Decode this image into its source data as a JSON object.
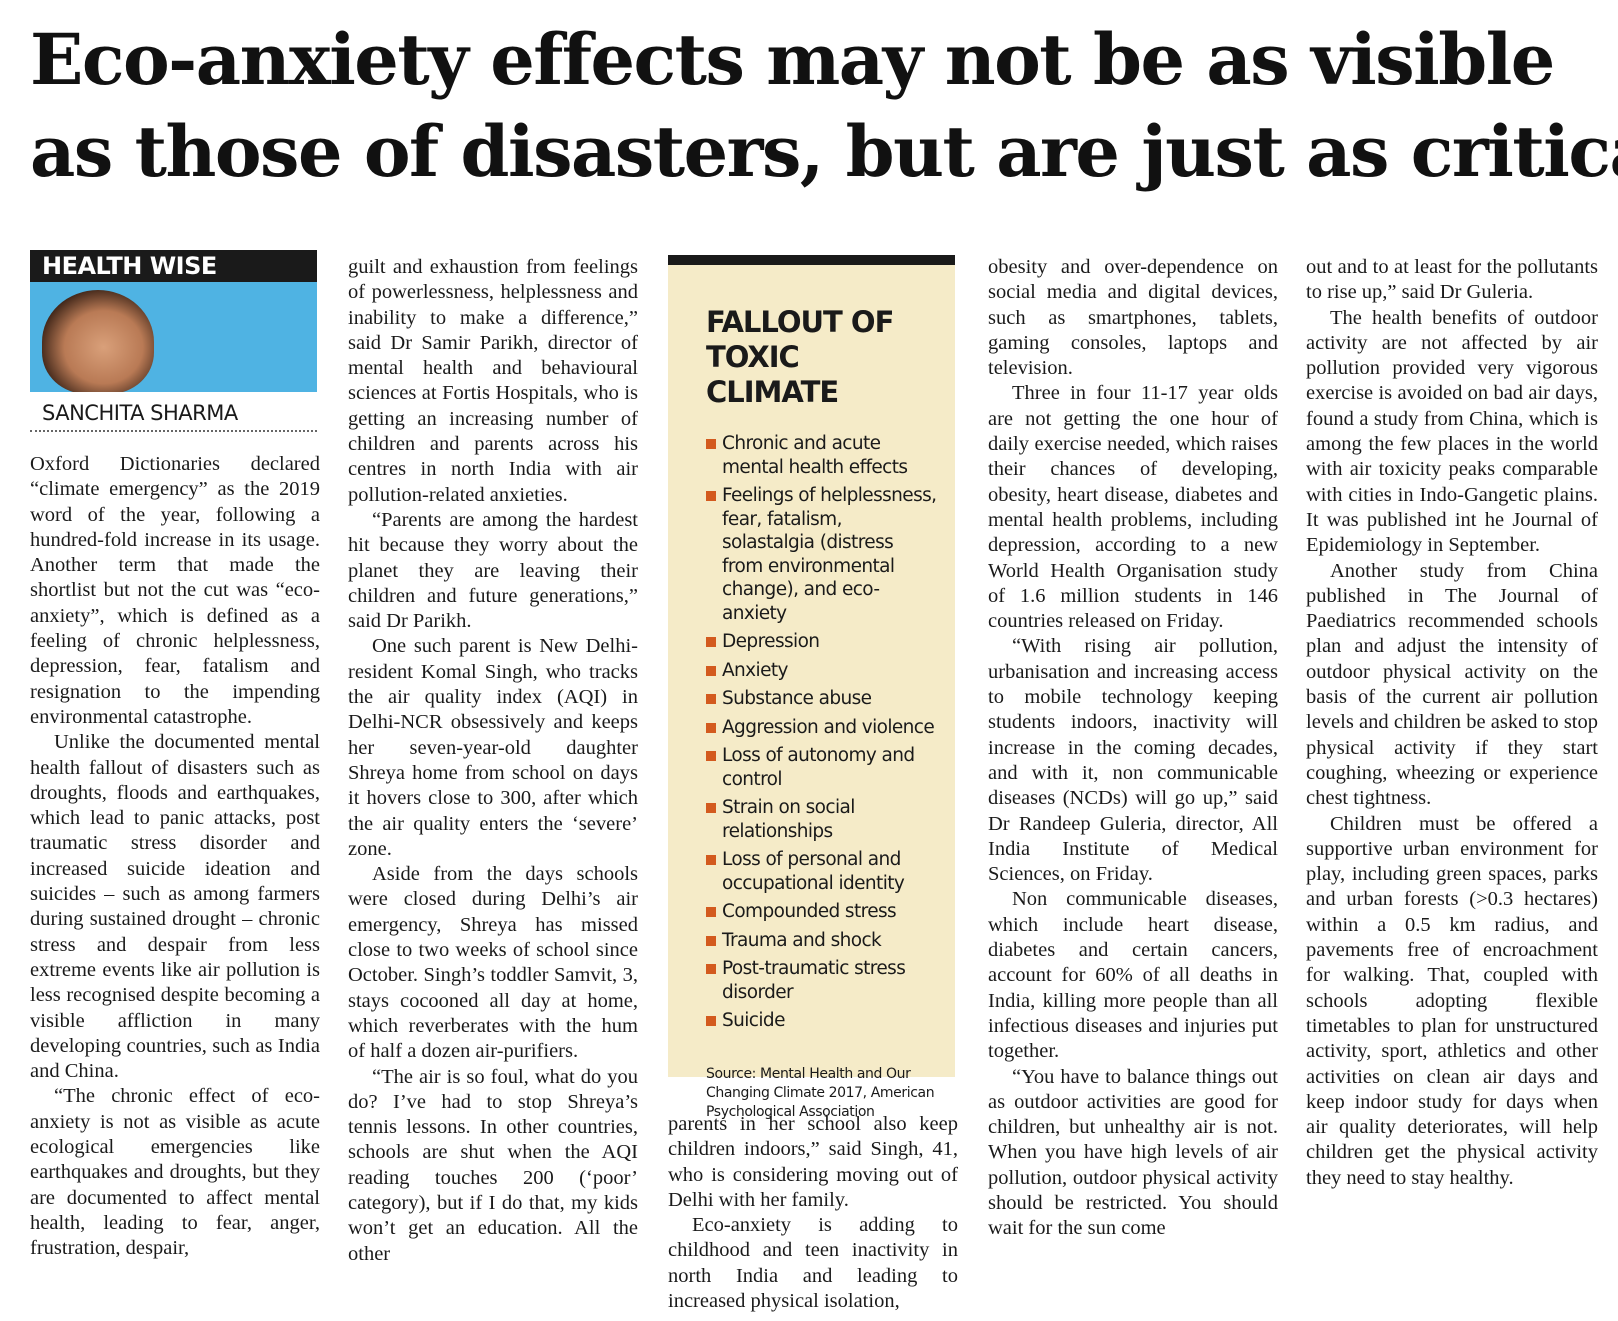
{
  "headline": {
    "line1": "Eco-anxiety effects may not be as visible",
    "line2": "as those of disasters, but are just as critical"
  },
  "column_tag": "HEALTH WISE",
  "author": "SANCHITA SHARMA",
  "sidebar": {
    "title_line1": "FALLOUT OF",
    "title_line2": "TOXIC CLIMATE",
    "items": [
      "Chronic and acute mental health effects",
      "Feelings of helplessness, fear, fatalism, solastalgia (distress from environmental change), and eco-anxiety",
      "Depression",
      "Anxiety",
      "Substance abuse",
      "Aggression and violence",
      "Loss of autonomy and control",
      "Strain on social relationships",
      "Loss of personal and occupational identity",
      "Compounded stress",
      "Trauma and shock",
      "Post-traumatic stress disorder",
      "Suicide"
    ],
    "source": "Source: Mental Health and Our Changing Climate 2017, American Psychological Association"
  },
  "body": {
    "col1": [
      "Oxford Dictionaries declared “climate emergency” as the 2019 word of the year, following a hundred-fold increase in its usage. Another term that made the shortlist but not the cut was “eco-anxiety”, which is defined as a feeling of chronic helplessness, depression, fear, fatalism and resignation to the impending environmental catastrophe.",
      "Unlike the documented mental health fallout of disasters such as droughts, floods and earthquakes, which lead to panic attacks, post traumatic stress disorder and increased suicide ideation and suicides – such as among farmers during sustained drought – chronic stress and despair from less extreme events like air pollution is less recognised despite becoming a visible affliction in many developing countries, such as India and China.",
      "“The chronic effect of eco-anxiety is not as visible as acute ecological emergencies like earthquakes and droughts, but they are documented to affect mental health, leading to fear, anger, frustration, despair,"
    ],
    "col2": [
      "guilt and exhaustion from feelings of powerlessness, helplessness and inability to make a difference,” said Dr Samir Parikh, director of mental health and behavioural sciences at Fortis Hospitals, who is getting an increasing number of children and parents across his centres in north India with air pollution-related anxieties.",
      "“Parents are among the hardest hit because they worry about the planet they are leaving their children and future generations,” said Dr Parikh.",
      "One such parent is New Delhi-resident Komal Singh, who tracks the air quality index (AQI) in Delhi-NCR obsessively and keeps her seven-year-old daughter Shreya home from school on days it hovers close to 300, after which the air quality enters the ‘severe’ zone.",
      "Aside from the days schools were closed during Delhi’s air emergency, Shreya has missed close to two weeks of school since October. Singh’s toddler Samvit, 3, stays cocooned all day at home, which reverberates with the hum of half a dozen air-purifiers.",
      "“The air is so foul, what do you do? I’ve had to stop Shreya’s tennis lessons. In other countries, schools are shut when the AQI reading touches 200 (‘poor’ category), but if I do that, my kids won’t get an education. All the other"
    ],
    "col3": [
      "parents in her school also keep children indoors,” said Singh, 41, who is considering moving out of Delhi with her family.",
      "Eco-anxiety is adding to childhood and teen inactivity in north India and leading to increased physical isolation,"
    ],
    "col4": [
      "obesity and over-dependence on social media and digital devices, such as smartphones, tablets, gaming consoles, laptops and television.",
      "Three in four 11-17 year olds are not getting the one hour of daily exercise needed, which raises their chances of developing, obesity, heart disease, diabetes and mental health problems, including depression, according to a new World Health Organisation study of 1.6 million students in 146 countries released on Friday.",
      "“With rising air pollution, urbanisation and increasing access to mobile technology keeping students indoors, inactivity will increase in the coming decades, and with it, non communicable diseases (NCDs) will go up,” said Dr Randeep Guleria, director, All India Institute of Medical Sciences, on Friday.",
      "Non communicable diseases, which include heart disease, diabetes and certain cancers, account for 60% of all deaths in India, killing more people than all infectious diseases and injuries put together.",
      "“You have to balance things out as outdoor activities are good for children, but unhealthy air is not. When you have high levels of air pollution, outdoor physical activity should be restricted. You should wait for the sun come"
    ],
    "col5": [
      "out and to at least for the pollutants to rise up,” said Dr Guleria.",
      "The health benefits of outdoor activity are not affected by air pollution provided very vigorous exercise is avoided on bad air days, found a study from China, which is among the few places in the world with air toxicity peaks comparable with cities in Indo-Gangetic plains. It was published int he Journal of Epidemiology in September.",
      "Another study from China published in The Journal of Paediatrics recommended schools plan and adjust the intensity of outdoor physical activity on the basis of the current air pollution levels and children be asked to stop physical activity if they start coughing, wheezing or experience chest tightness.",
      "Children must be offered a supportive urban environment for play, including green spaces, parks and urban forests (>0.3 hectares) within a 0.5 km radius, and pavements free of encroachment for walking. That, coupled with schools adopting flexible timetables to plan for unstructured activity, sport, athletics and other activities on clean air days and keep indoor study for days when air quality deteriorates, will help children get the physical activity they need to stay healthy."
    ]
  }
}
